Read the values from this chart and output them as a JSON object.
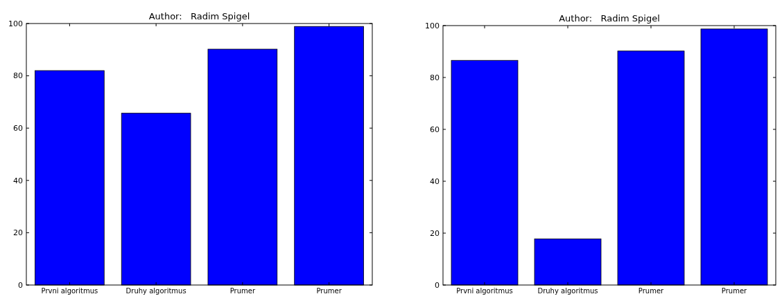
{
  "chart_data": [
    {
      "type": "bar",
      "title": "Author:   Radim Spigel",
      "categories": [
        "Prvni algoritmus",
        "Druhy algoritmus",
        "Prumer",
        "Prumer"
      ],
      "values": [
        82,
        65.7,
        90.2,
        98.9
      ],
      "color": "#0000ff",
      "ylim": [
        0,
        100
      ],
      "yticks": [
        0,
        20,
        40,
        60,
        80,
        100
      ],
      "grid": false
    },
    {
      "type": "bar",
      "title": "Author:   Radim Spigel",
      "categories": [
        "Prvni algoritmus",
        "Druhy algoritmus",
        "Prumer",
        "Prumer"
      ],
      "values": [
        86.6,
        17.8,
        90.2,
        98.7
      ],
      "color": "#0000ff",
      "ylim": [
        0,
        100
      ],
      "yticks": [
        0,
        20,
        40,
        60,
        80,
        100
      ],
      "grid": false
    }
  ]
}
